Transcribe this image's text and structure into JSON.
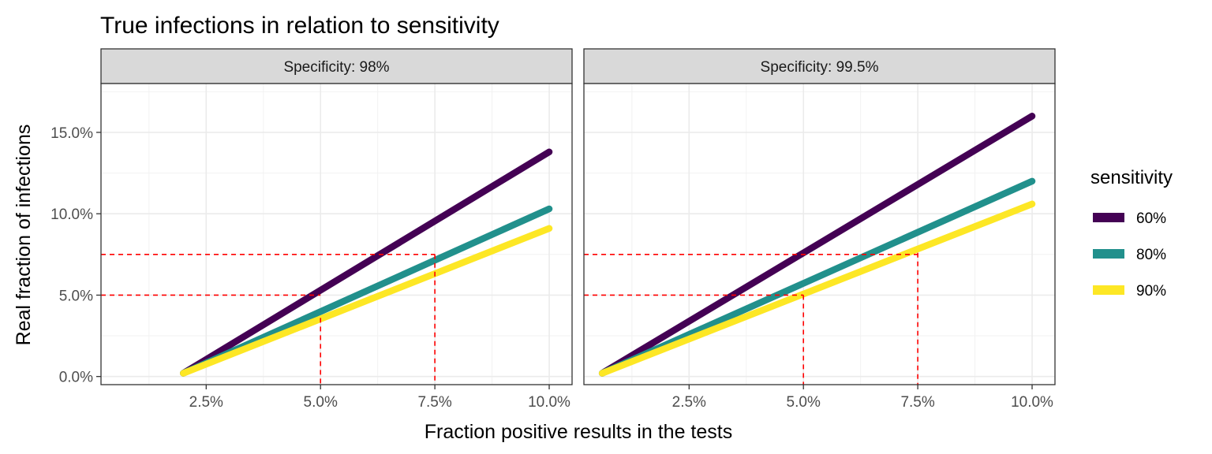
{
  "chart_data": {
    "type": "line",
    "title": "True infections in relation to sensitivity",
    "xlabel": "Fraction positive results in the tests",
    "ylabel": "Real fraction of infections",
    "xlim": [
      0.2,
      10.5
    ],
    "ylim": [
      -0.5,
      18.0
    ],
    "x_ticks": [
      2.5,
      5.0,
      7.5,
      10.0
    ],
    "x_tick_labels": [
      "2.5%",
      "5.0%",
      "7.5%",
      "10.0%"
    ],
    "y_ticks": [
      0.0,
      5.0,
      10.0,
      15.0
    ],
    "y_tick_labels": [
      "0.0%",
      "5.0%",
      "10.0%",
      "15.0%"
    ],
    "grid": true,
    "legend": {
      "title": "sensitivity",
      "position": "right",
      "entries": [
        "60%",
        "80%",
        "90%"
      ],
      "colors": [
        "#440154",
        "#21908C",
        "#FDE725"
      ]
    },
    "reference_lines": {
      "color": "#FF0000",
      "style": "dashed",
      "y_values": [
        5.0,
        7.5
      ]
    },
    "panels": [
      {
        "label": "Specificity: 98%",
        "series": [
          {
            "name": "60%",
            "x": [
              2.0,
              10.0
            ],
            "y": [
              0.2,
              13.8
            ]
          },
          {
            "name": "80%",
            "x": [
              2.0,
              10.0
            ],
            "y": [
              0.2,
              10.3
            ]
          },
          {
            "name": "90%",
            "x": [
              2.0,
              10.0
            ],
            "y": [
              0.2,
              9.1
            ]
          }
        ],
        "reference_drops": [
          {
            "x": 5.0,
            "y": 3.6
          },
          {
            "x": 7.5,
            "y": 7.5
          }
        ]
      },
      {
        "label": "Specificity: 99.5%",
        "series": [
          {
            "name": "60%",
            "x": [
              0.6,
              10.0
            ],
            "y": [
              0.2,
              16.0
            ]
          },
          {
            "name": "80%",
            "x": [
              0.6,
              10.0
            ],
            "y": [
              0.2,
              12.0
            ]
          },
          {
            "name": "90%",
            "x": [
              0.6,
              10.0
            ],
            "y": [
              0.2,
              10.6
            ]
          }
        ],
        "reference_drops": [
          {
            "x": 5.0,
            "y": 5.0
          },
          {
            "x": 7.5,
            "y": 7.6
          }
        ]
      }
    ]
  }
}
